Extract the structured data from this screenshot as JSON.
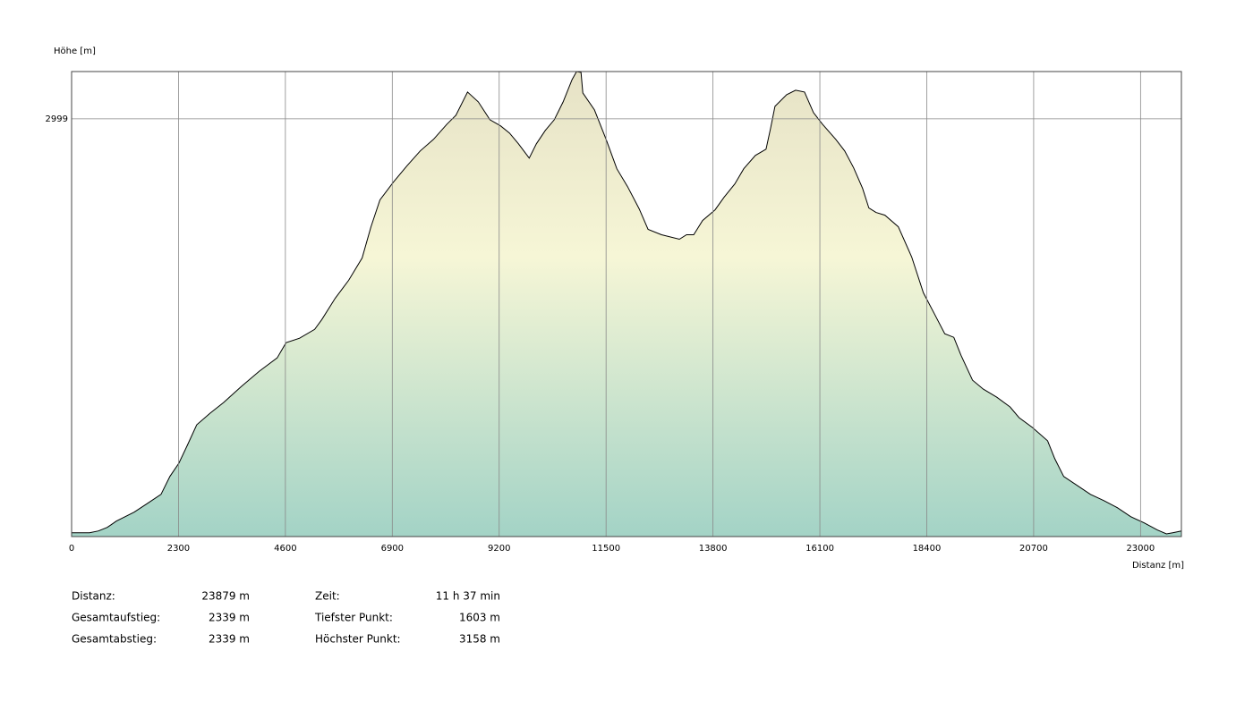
{
  "chart_data": {
    "type": "area",
    "ylabel": "Höhe [m]",
    "xlabel": "Distanz [m]",
    "xlim": [
      0,
      23879
    ],
    "ylim": [
      1594,
      3158
    ],
    "xticks": [
      0,
      2300,
      4600,
      6900,
      9200,
      11500,
      13800,
      16100,
      18400,
      20700,
      23000
    ],
    "yticks": [
      2999
    ],
    "grid": true,
    "x": [
      0,
      385,
      577,
      769,
      962,
      1346,
      1635,
      1923,
      2115,
      2308,
      2500,
      2692,
      2981,
      3269,
      3654,
      4038,
      4423,
      4615,
      4904,
      5231,
      5385,
      5673,
      5962,
      6250,
      6442,
      6635,
      6923,
      7212,
      7500,
      7788,
      8077,
      8269,
      8519,
      8750,
      9000,
      9231,
      9423,
      9615,
      9846,
      10000,
      10192,
      10385,
      10577,
      10769,
      10865,
      10962,
      11000,
      11250,
      11500,
      11731,
      11962,
      12212,
      12404,
      12692,
      13077,
      13231,
      13385,
      13577,
      13846,
      14038,
      14269,
      14462,
      14712,
      14942,
      15038,
      15135,
      15385,
      15577,
      15769,
      15962,
      16154,
      16442,
      16635,
      16827,
      17019,
      17154,
      17308,
      17500,
      17788,
      18077,
      18327,
      18558,
      18788,
      18981,
      19135,
      19385,
      19615,
      19904,
      20192,
      20385,
      20673,
      21000,
      21154,
      21346,
      21635,
      21923,
      22212,
      22500,
      22788,
      23077,
      23365,
      23558,
      23692,
      23879
    ],
    "series": [
      {
        "name": "Höhe",
        "color": "#000000",
        "values": [
          1607,
          1607,
          1613,
          1625,
          1646,
          1676,
          1706,
          1736,
          1796,
          1841,
          1904,
          1970,
          2009,
          2045,
          2099,
          2150,
          2195,
          2246,
          2261,
          2291,
          2324,
          2396,
          2456,
          2531,
          2636,
          2726,
          2786,
          2840,
          2891,
          2930,
          2981,
          3011,
          3089,
          3056,
          2996,
          2975,
          2951,
          2915,
          2867,
          2915,
          2960,
          2996,
          3056,
          3131,
          3158,
          3155,
          3086,
          3029,
          2930,
          2831,
          2771,
          2696,
          2627,
          2609,
          2594,
          2609,
          2609,
          2657,
          2693,
          2735,
          2780,
          2831,
          2876,
          2897,
          2966,
          3041,
          3080,
          3095,
          3089,
          3020,
          2981,
          2930,
          2891,
          2834,
          2765,
          2699,
          2684,
          2675,
          2636,
          2534,
          2414,
          2345,
          2276,
          2264,
          2204,
          2120,
          2090,
          2063,
          2030,
          1994,
          1961,
          1916,
          1856,
          1796,
          1766,
          1736,
          1715,
          1691,
          1661,
          1640,
          1616,
          1603,
          1607,
          1613
        ]
      }
    ]
  },
  "summary": [
    [
      [
        "Distanz:",
        "23879 m"
      ],
      [
        "Zeit:",
        "11 h 37 min"
      ]
    ],
    [
      [
        "Gesamtaufstieg:",
        "2339 m"
      ],
      [
        "Tiefster Punkt:",
        "1603 m"
      ]
    ],
    [
      [
        "Gesamtabstieg:",
        "2339 m"
      ],
      [
        "Höchster Punkt:",
        "3158 m"
      ]
    ]
  ]
}
